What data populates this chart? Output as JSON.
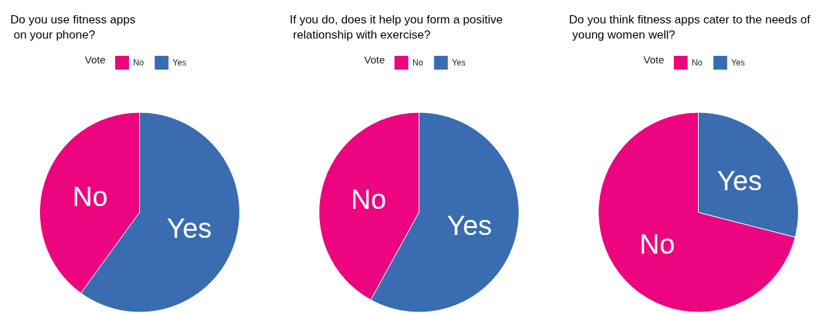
{
  "chart_data": [
    {
      "type": "pie",
      "title": "Do you use fitness apps\n on your phone?",
      "legend_title": "Vote",
      "legend": "top",
      "categories": [
        "No",
        "Yes"
      ],
      "values": [
        40,
        60
      ],
      "colors": [
        "#ec057e",
        "#396cb0"
      ]
    },
    {
      "type": "pie",
      "title": "If you do, does it help you form a positive\n relationship with exercise?",
      "legend_title": "Vote",
      "legend": "top",
      "categories": [
        "No",
        "Yes"
      ],
      "values": [
        42,
        58
      ],
      "colors": [
        "#ec057e",
        "#396cb0"
      ]
    },
    {
      "type": "pie",
      "title": "Do you think fitness apps cater to the needs of\n young women well?",
      "legend_title": "Vote",
      "legend": "top",
      "categories": [
        "No",
        "Yes"
      ],
      "values": [
        71,
        29
      ],
      "colors": [
        "#ec057e",
        "#396cb0"
      ]
    }
  ]
}
